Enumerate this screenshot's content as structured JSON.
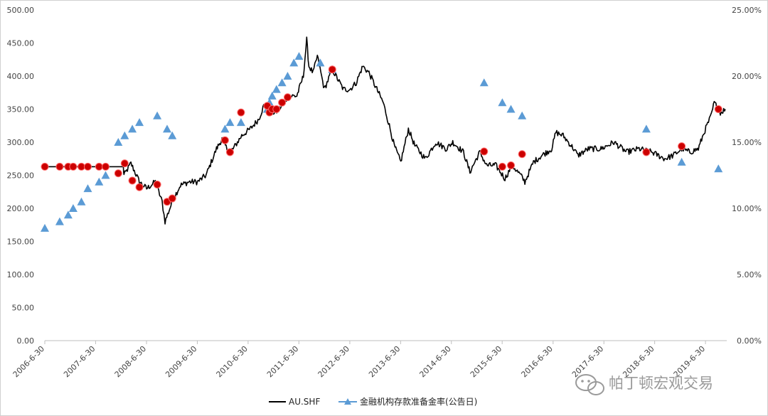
{
  "chart_data": {
    "type": "line",
    "left_axis": {
      "ylim": [
        0,
        500
      ],
      "tick_labels": [
        "0.00",
        "50.00",
        "100.00",
        "150.00",
        "200.00",
        "250.00",
        "300.00",
        "350.00",
        "400.00",
        "450.00",
        "500.00"
      ]
    },
    "right_axis": {
      "ylim": [
        0,
        0.25
      ],
      "tick_labels": [
        "0.00%",
        "5.00%",
        "10.00%",
        "15.00%",
        "20.00%",
        "25.00%"
      ]
    },
    "x_axis": {
      "range": [
        "2006-06-30",
        "2019-11-30"
      ],
      "tick_labels": [
        "2006-6-30",
        "2007-6-30",
        "2008-6-30",
        "2009-6-30",
        "2010-6-30",
        "2011-6-30",
        "2012-6-30",
        "2013-6-30",
        "2014-6-30",
        "2015-6-30",
        "2016-6-30",
        "2017-6-30",
        "2018-6-30",
        "2019-6-30"
      ]
    },
    "series": [
      {
        "name": "AU.SHF",
        "axis": "left",
        "color": "#000000",
        "points": [
          [
            "2006-06-30",
            263
          ],
          [
            "2008-01-15",
            263
          ],
          [
            "2008-01-20",
            250
          ],
          [
            "2008-03-10",
            268
          ],
          [
            "2008-05-10",
            240
          ],
          [
            "2008-07-01",
            230
          ],
          [
            "2008-09-01",
            240
          ],
          [
            "2008-10-20",
            210
          ],
          [
            "2008-11-10",
            180
          ],
          [
            "2009-01-10",
            215
          ],
          [
            "2009-03-01",
            235
          ],
          [
            "2009-05-01",
            240
          ],
          [
            "2009-07-01",
            240
          ],
          [
            "2009-09-01",
            250
          ],
          [
            "2009-11-15",
            290
          ],
          [
            "2009-12-25",
            305
          ],
          [
            "2010-02-10",
            285
          ],
          [
            "2010-03-15",
            290
          ],
          [
            "2010-05-15",
            310
          ],
          [
            "2010-07-15",
            320
          ],
          [
            "2010-09-15",
            335
          ],
          [
            "2010-10-20",
            355
          ],
          [
            "2010-12-01",
            345
          ],
          [
            "2011-01-15",
            345
          ],
          [
            "2011-03-01",
            355
          ],
          [
            "2011-04-15",
            370
          ],
          [
            "2011-06-15",
            370
          ],
          [
            "2011-08-01",
            400
          ],
          [
            "2011-08-25",
            455
          ],
          [
            "2011-09-10",
            415
          ],
          [
            "2011-10-10",
            405
          ],
          [
            "2011-11-10",
            430
          ],
          [
            "2011-12-30",
            380
          ],
          [
            "2012-02-25",
            410
          ],
          [
            "2012-05-15",
            380
          ],
          [
            "2012-07-01",
            380
          ],
          [
            "2012-08-15",
            390
          ],
          [
            "2012-10-01",
            415
          ],
          [
            "2012-11-15",
            405
          ],
          [
            "2013-01-10",
            380
          ],
          [
            "2013-02-25",
            360
          ],
          [
            "2013-04-10",
            325
          ],
          [
            "2013-05-15",
            295
          ],
          [
            "2013-07-01",
            270
          ],
          [
            "2013-08-25",
            320
          ],
          [
            "2013-10-10",
            295
          ],
          [
            "2013-12-25",
            275
          ],
          [
            "2014-03-10",
            300
          ],
          [
            "2014-05-25",
            290
          ],
          [
            "2014-07-10",
            300
          ],
          [
            "2014-09-25",
            285
          ],
          [
            "2014-11-10",
            255
          ],
          [
            "2015-01-20",
            285
          ],
          [
            "2015-03-10",
            265
          ],
          [
            "2015-05-15",
            265
          ],
          [
            "2015-07-20",
            245
          ],
          [
            "2015-09-10",
            265
          ],
          [
            "2015-11-10",
            250
          ],
          [
            "2015-12-10",
            240
          ],
          [
            "2016-02-10",
            270
          ],
          [
            "2016-04-10",
            280
          ],
          [
            "2016-06-20",
            290
          ],
          [
            "2016-07-20",
            315
          ],
          [
            "2016-09-10",
            310
          ],
          [
            "2016-11-25",
            290
          ],
          [
            "2016-12-25",
            280
          ],
          [
            "2017-03-10",
            290
          ],
          [
            "2017-06-10",
            290
          ],
          [
            "2017-09-10",
            300
          ],
          [
            "2017-12-10",
            285
          ],
          [
            "2018-03-10",
            290
          ],
          [
            "2018-06-10",
            285
          ],
          [
            "2018-09-10",
            275
          ],
          [
            "2018-11-10",
            280
          ],
          [
            "2019-01-10",
            290
          ],
          [
            "2019-03-10",
            285
          ],
          [
            "2019-05-10",
            290
          ],
          [
            "2019-06-20",
            315
          ],
          [
            "2019-08-10",
            340
          ],
          [
            "2019-09-01",
            360
          ],
          [
            "2019-10-15",
            345
          ],
          [
            "2019-11-20",
            350
          ]
        ]
      },
      {
        "name": "金融机构存款准备金率(公告日)",
        "axis": "right",
        "color": "#5b9bd5",
        "marker": "triangle",
        "points": [
          [
            "2006-06-30",
            0.085
          ],
          [
            "2006-10-15",
            0.09
          ],
          [
            "2006-12-15",
            0.095
          ],
          [
            "2007-01-20",
            0.1
          ],
          [
            "2007-03-20",
            0.105
          ],
          [
            "2007-05-05",
            0.115
          ],
          [
            "2007-07-25",
            0.12
          ],
          [
            "2007-09-10",
            0.125
          ],
          [
            "2007-12-10",
            0.15
          ],
          [
            "2008-01-25",
            0.155
          ],
          [
            "2008-03-20",
            0.16
          ],
          [
            "2008-05-10",
            0.165
          ],
          [
            "2008-09-15",
            0.17
          ],
          [
            "2008-11-25",
            0.16
          ],
          [
            "2009-01-01",
            0.155
          ],
          [
            "2010-01-15",
            0.16
          ],
          [
            "2010-02-20",
            0.165
          ],
          [
            "2010-05-10",
            0.165
          ],
          [
            "2010-11-15",
            0.175
          ],
          [
            "2010-12-01",
            0.18
          ],
          [
            "2010-12-20",
            0.185
          ],
          [
            "2011-01-20",
            0.19
          ],
          [
            "2011-03-01",
            0.195
          ],
          [
            "2011-04-10",
            0.2
          ],
          [
            "2011-05-25",
            0.21
          ],
          [
            "2011-07-01",
            0.215
          ],
          [
            "2011-12-01",
            0.21
          ],
          [
            "2012-02-25",
            0.205
          ],
          [
            "2015-02-20",
            0.195
          ],
          [
            "2015-07-01",
            0.18
          ],
          [
            "2015-09-01",
            0.175
          ],
          [
            "2015-11-20",
            0.17
          ],
          [
            "2018-05-01",
            0.16
          ],
          [
            "2019-01-10",
            0.135
          ],
          [
            "2019-10-01",
            0.13
          ]
        ]
      },
      {
        "name": "",
        "axis": "left",
        "color": "#cc0000",
        "marker": "circle",
        "points": [
          [
            "2006-06-30",
            263
          ],
          [
            "2006-10-15",
            263
          ],
          [
            "2006-12-15",
            263
          ],
          [
            "2007-01-20",
            263
          ],
          [
            "2007-03-20",
            263
          ],
          [
            "2007-05-05",
            263
          ],
          [
            "2007-07-25",
            263
          ],
          [
            "2007-09-10",
            263
          ],
          [
            "2007-12-10",
            253
          ],
          [
            "2008-01-25",
            268
          ],
          [
            "2008-03-20",
            242
          ],
          [
            "2008-05-10",
            232
          ],
          [
            "2008-09-15",
            236
          ],
          [
            "2008-11-25",
            210
          ],
          [
            "2009-01-01",
            215
          ],
          [
            "2010-01-15",
            303
          ],
          [
            "2010-02-20",
            285
          ],
          [
            "2010-05-10",
            345
          ],
          [
            "2010-11-15",
            355
          ],
          [
            "2010-12-01",
            345
          ],
          [
            "2010-12-20",
            350
          ],
          [
            "2011-01-20",
            350
          ],
          [
            "2011-03-01",
            360
          ],
          [
            "2011-04-10",
            368
          ],
          [
            "2012-02-25",
            410
          ],
          [
            "2015-02-20",
            286
          ],
          [
            "2015-07-01",
            263
          ],
          [
            "2015-09-01",
            265
          ],
          [
            "2015-11-20",
            282
          ],
          [
            "2018-05-01",
            285
          ],
          [
            "2019-01-10",
            294
          ],
          [
            "2019-10-01",
            350
          ]
        ]
      }
    ],
    "legend": {
      "placement": "bottom",
      "items": [
        {
          "label": "AU.SHF",
          "color": "#000000",
          "marker": "line"
        },
        {
          "label": "金融机构存款准备金率(公告日)",
          "color": "#5b9bd5",
          "marker": "triangle"
        }
      ]
    },
    "grid": false
  },
  "watermark": {
    "text": "帕丁顿宏观交易"
  }
}
